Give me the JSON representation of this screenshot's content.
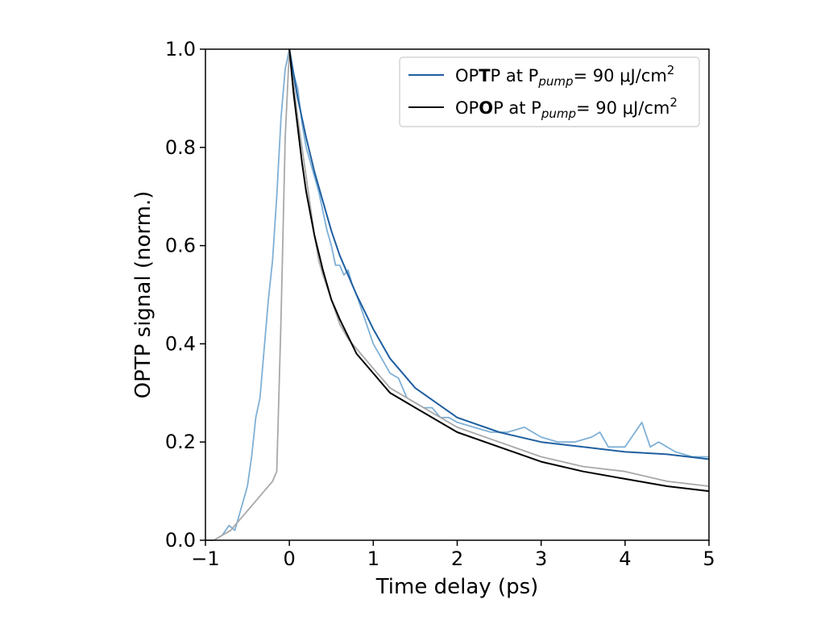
{
  "chart_data": {
    "type": "line",
    "xlabel": "Time delay (ps)",
    "ylabel": "OPTP signal (norm.)",
    "xlim": [
      -1,
      5
    ],
    "ylim": [
      0.0,
      1.0
    ],
    "xticks": [
      -1,
      0,
      1,
      2,
      3,
      4,
      5
    ],
    "xtick_labels": [
      "−1",
      "0",
      "1",
      "2",
      "3",
      "4",
      "5"
    ],
    "yticks": [
      0.0,
      0.2,
      0.4,
      0.6,
      0.8,
      1.0
    ],
    "ytick_labels": [
      "0.0",
      "0.2",
      "0.4",
      "0.6",
      "0.8",
      "1.0"
    ],
    "grid": false,
    "legend_position": "top-right",
    "legend": [
      {
        "prefix": "OP",
        "bold": "T",
        "suffix": "P at P",
        "sub": "pump",
        "tail": "= 90 μJ/cm",
        "sup": "2",
        "color": "#1f5fa0"
      },
      {
        "prefix": "OP",
        "bold": "O",
        "suffix": "P at P",
        "sub": "pump",
        "tail": "= 90 μJ/cm",
        "sup": "2",
        "color": "#000000"
      }
    ],
    "series": [
      {
        "kind": "data",
        "color": "#7fb0d6",
        "x": [
          -1.0,
          -0.9,
          -0.8,
          -0.72,
          -0.65,
          -0.6,
          -0.55,
          -0.5,
          -0.45,
          -0.4,
          -0.35,
          -0.3,
          -0.25,
          -0.2,
          -0.15,
          -0.1,
          -0.05,
          0.0,
          0.05,
          0.1,
          0.15,
          0.2,
          0.25,
          0.3,
          0.35,
          0.4,
          0.45,
          0.5,
          0.55,
          0.6,
          0.65,
          0.7,
          0.75,
          0.8,
          0.9,
          1.0,
          1.1,
          1.2,
          1.3,
          1.4,
          1.5,
          1.6,
          1.7,
          1.8,
          1.9,
          2.0,
          2.2,
          2.4,
          2.6,
          2.8,
          3.0,
          3.2,
          3.4,
          3.6,
          3.7,
          3.8,
          4.0,
          4.2,
          4.3,
          4.4,
          4.6,
          4.8,
          5.0
        ],
        "y": [
          0.0,
          0.0,
          0.01,
          0.03,
          0.02,
          0.05,
          0.08,
          0.11,
          0.17,
          0.25,
          0.29,
          0.39,
          0.49,
          0.57,
          0.7,
          0.86,
          0.96,
          1.0,
          0.95,
          0.92,
          0.85,
          0.8,
          0.77,
          0.74,
          0.71,
          0.67,
          0.63,
          0.6,
          0.56,
          0.56,
          0.54,
          0.55,
          0.52,
          0.5,
          0.45,
          0.4,
          0.37,
          0.34,
          0.33,
          0.29,
          0.28,
          0.27,
          0.27,
          0.25,
          0.25,
          0.24,
          0.23,
          0.22,
          0.22,
          0.23,
          0.21,
          0.2,
          0.2,
          0.21,
          0.22,
          0.19,
          0.19,
          0.24,
          0.19,
          0.2,
          0.18,
          0.17,
          0.17
        ]
      },
      {
        "kind": "data",
        "color": "#a8a8a8",
        "x": [
          -1.0,
          -0.9,
          -0.8,
          -0.7,
          -0.6,
          -0.5,
          -0.4,
          -0.3,
          -0.2,
          -0.15,
          -0.1,
          -0.05,
          0.0,
          0.05,
          0.1,
          0.15,
          0.2,
          0.25,
          0.3,
          0.35,
          0.4,
          0.5,
          0.6,
          0.7,
          0.8,
          0.9,
          1.0,
          1.2,
          1.4,
          1.6,
          1.8,
          2.0,
          2.5,
          3.0,
          3.5,
          4.0,
          4.5,
          5.0
        ],
        "y": [
          0.0,
          0.0,
          0.01,
          0.02,
          0.04,
          0.06,
          0.08,
          0.1,
          0.12,
          0.14,
          0.45,
          0.82,
          1.0,
          0.93,
          0.86,
          0.8,
          0.74,
          0.68,
          0.62,
          0.57,
          0.54,
          0.49,
          0.44,
          0.41,
          0.39,
          0.37,
          0.35,
          0.31,
          0.29,
          0.27,
          0.25,
          0.23,
          0.2,
          0.17,
          0.15,
          0.14,
          0.12,
          0.11
        ]
      },
      {
        "kind": "fit",
        "color": "#1f5fa0",
        "x": [
          0.0,
          0.05,
          0.1,
          0.15,
          0.2,
          0.3,
          0.4,
          0.5,
          0.6,
          0.8,
          1.0,
          1.2,
          1.5,
          2.0,
          2.5,
          3.0,
          3.5,
          4.0,
          4.5,
          5.0
        ],
        "y": [
          1.0,
          0.95,
          0.9,
          0.86,
          0.82,
          0.75,
          0.69,
          0.63,
          0.58,
          0.5,
          0.43,
          0.37,
          0.31,
          0.25,
          0.22,
          0.2,
          0.19,
          0.18,
          0.175,
          0.165
        ]
      },
      {
        "kind": "fit",
        "color": "#000000",
        "x": [
          0.0,
          0.05,
          0.1,
          0.15,
          0.2,
          0.3,
          0.4,
          0.5,
          0.6,
          0.8,
          1.0,
          1.2,
          1.5,
          2.0,
          2.5,
          3.0,
          3.5,
          4.0,
          4.5,
          5.0
        ],
        "y": [
          1.0,
          0.91,
          0.84,
          0.77,
          0.71,
          0.62,
          0.55,
          0.49,
          0.45,
          0.38,
          0.34,
          0.3,
          0.27,
          0.22,
          0.19,
          0.16,
          0.14,
          0.125,
          0.11,
          0.1
        ]
      }
    ]
  }
}
